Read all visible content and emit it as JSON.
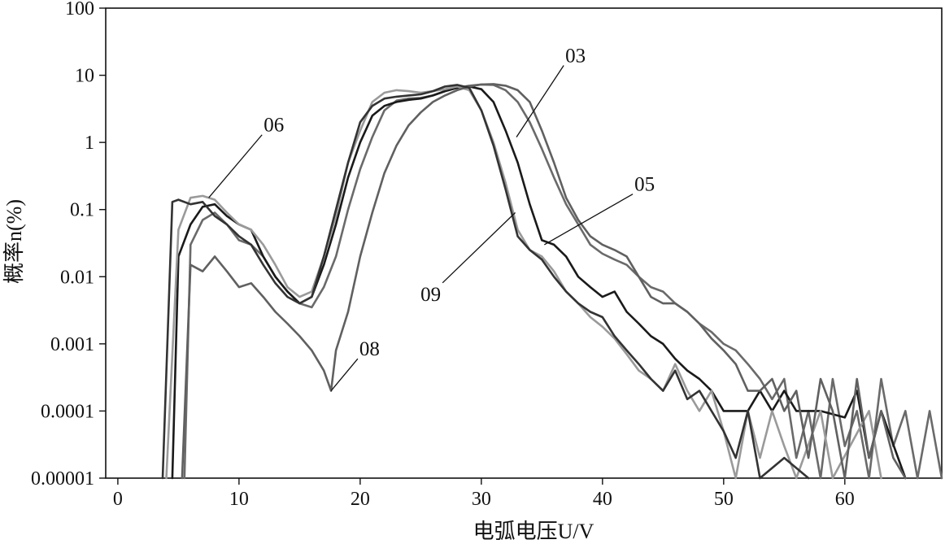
{
  "chart_data": {
    "type": "line",
    "xlabel": "电弧电压U/V",
    "ylabel": "概率n(%)",
    "xlim": [
      -1,
      68
    ],
    "ylim": [
      1e-05,
      100
    ],
    "y_scale": "log",
    "x_ticks": [
      "0",
      "10",
      "20",
      "30",
      "40",
      "50",
      "60"
    ],
    "x_tick_values": [
      0,
      10,
      20,
      30,
      40,
      50,
      60
    ],
    "y_ticks": [
      "0.00001",
      "0.0001",
      "0.001",
      "0.01",
      "0.1",
      "1",
      "10",
      "100"
    ],
    "y_tick_values": [
      1e-05,
      0.0001,
      0.001,
      0.01,
      0.1,
      1,
      10,
      100
    ],
    "grid": false,
    "series": [
      {
        "name": "03",
        "color": "#6a6a6a",
        "points": [
          [
            5.5,
            1e-05
          ],
          [
            6,
            0.03
          ],
          [
            7,
            0.07
          ],
          [
            8,
            0.09
          ],
          [
            9,
            0.06
          ],
          [
            10,
            0.035
          ],
          [
            11,
            0.03
          ],
          [
            12,
            0.02
          ],
          [
            13,
            0.01
          ],
          [
            14,
            0.006
          ],
          [
            15,
            0.004
          ],
          [
            16,
            0.0035
          ],
          [
            17,
            0.007
          ],
          [
            18,
            0.02
          ],
          [
            19,
            0.1
          ],
          [
            20,
            0.4
          ],
          [
            21,
            1.2
          ],
          [
            22,
            3
          ],
          [
            23,
            4.2
          ],
          [
            24,
            4.5
          ],
          [
            25,
            4.6
          ],
          [
            26,
            5
          ],
          [
            27,
            5.8
          ],
          [
            28,
            6.5
          ],
          [
            29,
            7
          ],
          [
            30,
            7.3
          ],
          [
            31,
            7.2
          ],
          [
            32,
            6
          ],
          [
            33,
            4
          ],
          [
            34,
            2
          ],
          [
            35,
            0.8
          ],
          [
            36,
            0.3
          ],
          [
            37,
            0.12
          ],
          [
            38,
            0.06
          ],
          [
            39,
            0.03
          ],
          [
            40,
            0.022
          ],
          [
            41,
            0.018
          ],
          [
            42,
            0.015
          ],
          [
            43,
            0.01
          ],
          [
            44,
            0.007
          ],
          [
            45,
            0.006
          ],
          [
            46,
            0.004
          ],
          [
            47,
            0.003
          ],
          [
            48,
            0.002
          ],
          [
            49,
            0.0015
          ],
          [
            50,
            0.001
          ],
          [
            51,
            0.0008
          ],
          [
            52,
            0.0005
          ],
          [
            53,
            0.0003
          ],
          [
            54,
            0.00015
          ],
          [
            55,
            0.0003
          ],
          [
            56,
            2e-05
          ],
          [
            57,
            0.0001
          ],
          [
            58,
            1e-05
          ],
          [
            59,
            0.0003
          ],
          [
            60,
            3e-05
          ],
          [
            61,
            0.0001
          ],
          [
            62,
            1e-05
          ],
          [
            63,
            0.0003
          ],
          [
            64,
            3e-05
          ],
          [
            65,
            0.0001
          ],
          [
            66,
            1e-05
          ],
          [
            67,
            0.0001
          ],
          [
            68,
            1e-05
          ]
        ]
      },
      {
        "name": "05",
        "color": "#1a1a1a",
        "points": [
          [
            4.5,
            1e-05
          ],
          [
            5,
            0.02
          ],
          [
            6,
            0.06
          ],
          [
            7,
            0.11
          ],
          [
            8,
            0.12
          ],
          [
            9,
            0.08
          ],
          [
            10,
            0.06
          ],
          [
            11,
            0.05
          ],
          [
            12,
            0.02
          ],
          [
            13,
            0.01
          ],
          [
            14,
            0.006
          ],
          [
            15,
            0.004
          ],
          [
            16,
            0.005
          ],
          [
            17,
            0.015
          ],
          [
            18,
            0.06
          ],
          [
            19,
            0.3
          ],
          [
            20,
            1
          ],
          [
            21,
            2.5
          ],
          [
            22,
            3.5
          ],
          [
            23,
            4
          ],
          [
            24,
            4.3
          ],
          [
            25,
            4.5
          ],
          [
            26,
            5
          ],
          [
            27,
            5.8
          ],
          [
            28,
            6.5
          ],
          [
            29,
            6.8
          ],
          [
            30,
            6.2
          ],
          [
            31,
            4
          ],
          [
            32,
            1.5
          ],
          [
            33,
            0.5
          ],
          [
            34,
            0.12
          ],
          [
            35,
            0.035
          ],
          [
            36,
            0.03
          ],
          [
            37,
            0.02
          ],
          [
            38,
            0.01
          ],
          [
            39,
            0.007
          ],
          [
            40,
            0.005
          ],
          [
            41,
            0.006
          ],
          [
            42,
            0.003
          ],
          [
            43,
            0.002
          ],
          [
            44,
            0.0013
          ],
          [
            45,
            0.001
          ],
          [
            46,
            0.0006
          ],
          [
            47,
            0.0004
          ],
          [
            48,
            0.0003
          ],
          [
            49,
            0.0002
          ],
          [
            50,
            0.0001
          ],
          [
            52,
            0.0001
          ],
          [
            53,
            0.0002
          ],
          [
            54,
            0.0001
          ],
          [
            55,
            0.0002
          ],
          [
            56,
            0.0001
          ],
          [
            58,
            0.0001
          ],
          [
            60,
            8e-05
          ],
          [
            61,
            0.0002
          ],
          [
            62,
            2e-05
          ],
          [
            63,
            0.0001
          ],
          [
            65,
            1e-05
          ]
        ]
      },
      {
        "name": "06",
        "color": "#9a9a9a",
        "points": [
          [
            4,
            1e-05
          ],
          [
            5,
            0.05
          ],
          [
            6,
            0.15
          ],
          [
            7,
            0.16
          ],
          [
            8,
            0.14
          ],
          [
            9,
            0.09
          ],
          [
            10,
            0.06
          ],
          [
            11,
            0.05
          ],
          [
            12,
            0.03
          ],
          [
            13,
            0.015
          ],
          [
            14,
            0.007
          ],
          [
            15,
            0.005
          ],
          [
            16,
            0.006
          ],
          [
            17,
            0.02
          ],
          [
            18,
            0.08
          ],
          [
            19,
            0.5
          ],
          [
            20,
            1.5
          ],
          [
            21,
            4
          ],
          [
            22,
            5.5
          ],
          [
            23,
            6
          ],
          [
            24,
            5.8
          ],
          [
            25,
            5.5
          ],
          [
            26,
            5.8
          ],
          [
            27,
            6.2
          ],
          [
            28,
            6.8
          ],
          [
            29,
            6
          ],
          [
            30,
            3
          ],
          [
            31,
            1
          ],
          [
            32,
            0.25
          ],
          [
            33,
            0.05
          ],
          [
            34,
            0.025
          ],
          [
            35,
            0.02
          ],
          [
            36,
            0.012
          ],
          [
            37,
            0.006
          ],
          [
            38,
            0.004
          ],
          [
            39,
            0.0025
          ],
          [
            40,
            0.0018
          ],
          [
            41,
            0.0012
          ],
          [
            42,
            0.0007
          ],
          [
            43,
            0.0004
          ],
          [
            44,
            0.0003
          ],
          [
            45,
            0.0002
          ],
          [
            46,
            0.0005
          ],
          [
            47,
            0.0002
          ],
          [
            48,
            0.0001
          ],
          [
            49,
            0.0002
          ],
          [
            50,
            5e-05
          ],
          [
            51,
            1e-05
          ],
          [
            52,
            0.0001
          ],
          [
            53,
            2e-05
          ],
          [
            54,
            0.0001
          ],
          [
            55,
            3e-05
          ],
          [
            56,
            1e-05
          ],
          [
            58,
            0.0001
          ],
          [
            59,
            1e-05
          ],
          [
            62,
            0.0001
          ],
          [
            63,
            1e-05
          ]
        ]
      },
      {
        "name": "08",
        "color": "#606060",
        "points": [
          [
            5.3,
            1e-05
          ],
          [
            6,
            0.015
          ],
          [
            7,
            0.012
          ],
          [
            8,
            0.02
          ],
          [
            9,
            0.012
          ],
          [
            10,
            0.007
          ],
          [
            11,
            0.008
          ],
          [
            12,
            0.005
          ],
          [
            13,
            0.003
          ],
          [
            14,
            0.002
          ],
          [
            15,
            0.0013
          ],
          [
            16,
            0.0008
          ],
          [
            17,
            0.0004
          ],
          [
            17.6,
            0.0002
          ],
          [
            18,
            0.0008
          ],
          [
            19,
            0.003
          ],
          [
            20,
            0.02
          ],
          [
            21,
            0.09
          ],
          [
            22,
            0.35
          ],
          [
            23,
            0.9
          ],
          [
            24,
            1.8
          ],
          [
            25,
            2.8
          ],
          [
            26,
            4
          ],
          [
            27,
            5
          ],
          [
            28,
            6
          ],
          [
            29,
            6.8
          ],
          [
            30,
            7.3
          ],
          [
            31,
            7.4
          ],
          [
            32,
            7
          ],
          [
            33,
            6
          ],
          [
            34,
            4
          ],
          [
            35,
            1.5
          ],
          [
            36,
            0.5
          ],
          [
            37,
            0.15
          ],
          [
            38,
            0.07
          ],
          [
            39,
            0.04
          ],
          [
            40,
            0.03
          ],
          [
            41,
            0.025
          ],
          [
            42,
            0.02
          ],
          [
            43,
            0.01
          ],
          [
            44,
            0.005
          ],
          [
            45,
            0.004
          ],
          [
            46,
            0.004
          ],
          [
            47,
            0.003
          ],
          [
            48,
            0.002
          ],
          [
            49,
            0.0012
          ],
          [
            50,
            0.0008
          ],
          [
            51,
            0.0005
          ],
          [
            52,
            0.0002
          ],
          [
            53,
            0.0002
          ],
          [
            54,
            0.0003
          ],
          [
            55,
            0.0001
          ],
          [
            56,
            0.0002
          ],
          [
            57,
            2e-05
          ],
          [
            58,
            0.0003
          ],
          [
            59,
            0.0001
          ],
          [
            60,
            1e-05
          ],
          [
            61,
            0.0003
          ],
          [
            62,
            2e-05
          ],
          [
            63,
            0.0001
          ],
          [
            64,
            2e-05
          ],
          [
            65,
            1e-05
          ]
        ]
      },
      {
        "name": "09",
        "color": "#333333",
        "points": [
          [
            3.7,
            1e-05
          ],
          [
            4.5,
            0.13
          ],
          [
            5,
            0.14
          ],
          [
            6,
            0.12
          ],
          [
            7,
            0.13
          ],
          [
            8,
            0.08
          ],
          [
            9,
            0.06
          ],
          [
            10,
            0.04
          ],
          [
            11,
            0.03
          ],
          [
            12,
            0.015
          ],
          [
            13,
            0.008
          ],
          [
            14,
            0.005
          ],
          [
            15,
            0.004
          ],
          [
            16,
            0.005
          ],
          [
            17,
            0.02
          ],
          [
            18,
            0.1
          ],
          [
            19,
            0.5
          ],
          [
            20,
            2
          ],
          [
            21,
            3.5
          ],
          [
            22,
            4.5
          ],
          [
            23,
            4.8
          ],
          [
            24,
            5
          ],
          [
            25,
            5.2
          ],
          [
            26,
            5.8
          ],
          [
            27,
            6.8
          ],
          [
            28,
            7.2
          ],
          [
            29,
            6.5
          ],
          [
            30,
            3
          ],
          [
            31,
            0.9
          ],
          [
            32,
            0.2
          ],
          [
            33,
            0.04
          ],
          [
            34,
            0.025
          ],
          [
            35,
            0.018
          ],
          [
            36,
            0.01
          ],
          [
            37,
            0.006
          ],
          [
            38,
            0.004
          ],
          [
            39,
            0.003
          ],
          [
            40,
            0.0025
          ],
          [
            41,
            0.0013
          ],
          [
            42,
            0.0008
          ],
          [
            43,
            0.0005
          ],
          [
            44,
            0.0003
          ],
          [
            45,
            0.0002
          ],
          [
            46,
            0.0004
          ],
          [
            47,
            0.00015
          ],
          [
            48,
            0.0002
          ],
          [
            49,
            0.0001
          ],
          [
            50,
            5e-05
          ],
          [
            51,
            2e-05
          ],
          [
            52,
            0.0001
          ],
          [
            53,
            1e-05
          ],
          [
            55,
            2e-05
          ],
          [
            57,
            1e-05
          ]
        ]
      }
    ],
    "annotations": [
      {
        "text": "03",
        "series": "03",
        "at": [
          32.9,
          1.2
        ],
        "label_at": [
          36.8,
          14
        ]
      },
      {
        "text": "05",
        "series": "05",
        "at": [
          35.2,
          0.03
        ],
        "label_at": [
          42.5,
          0.17
        ]
      },
      {
        "text": "06",
        "series": "06",
        "at": [
          7.5,
          0.15
        ],
        "label_at": [
          11.9,
          1.3
        ]
      },
      {
        "text": "08",
        "series": "08",
        "at": [
          17.6,
          0.0002
        ],
        "label_at": [
          19.8,
          0.0006
        ]
      },
      {
        "text": "09",
        "series": "09",
        "at": [
          32.8,
          0.09
        ],
        "label_at": [
          26.8,
          0.0081
        ]
      }
    ]
  }
}
